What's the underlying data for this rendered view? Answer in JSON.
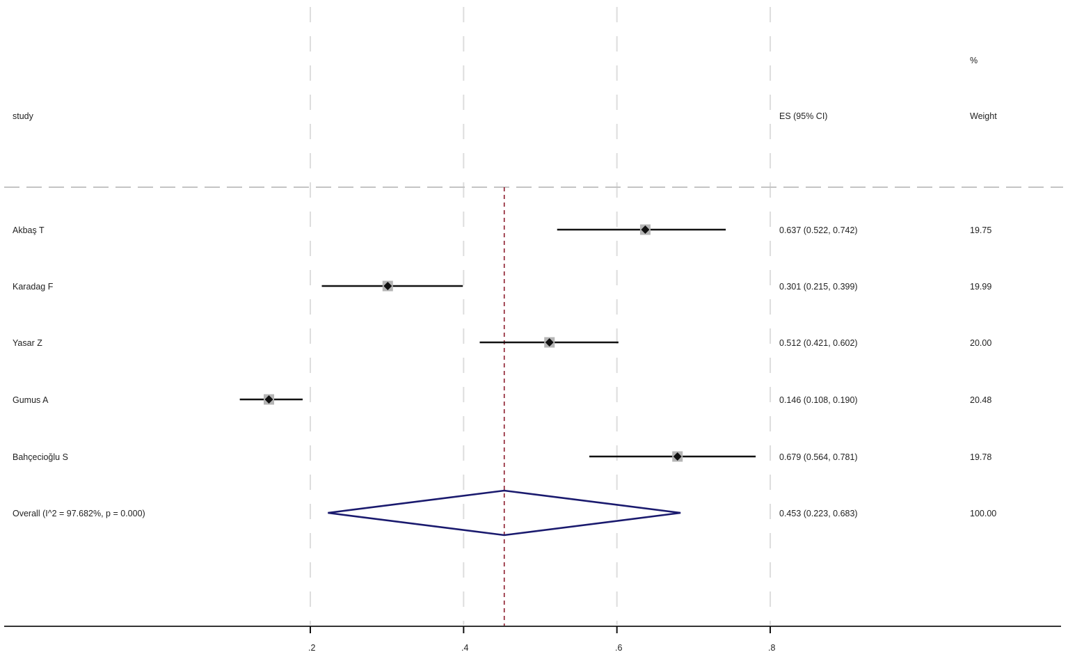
{
  "headers": {
    "study": "study",
    "es": "ES (95% CI)",
    "weight_line1": "%",
    "weight_line2": "Weight"
  },
  "rows": [
    {
      "study": "Akbaş T",
      "es_text": "0.637 (0.522, 0.742)",
      "weight": "19.75"
    },
    {
      "study": "Karadag F",
      "es_text": "0.301 (0.215, 0.399)",
      "weight": "19.99"
    },
    {
      "study": "Yasar Z",
      "es_text": "0.512 (0.421, 0.602)",
      "weight": "20.00"
    },
    {
      "study": "Gumus A",
      "es_text": "0.146 (0.108, 0.190)",
      "weight": "20.48"
    },
    {
      "study": "Bahçecioğlu S",
      "es_text": "0.679 (0.564, 0.781)",
      "weight": "19.78"
    }
  ],
  "overall": {
    "label": "Overall  (I^2 = 97.682%, p = 0.000)",
    "es_text": "0.453 (0.223, 0.683)",
    "weight": "100.00"
  },
  "axis": {
    "ticks": [
      ".2",
      ".4",
      ".6",
      ".8"
    ]
  },
  "colors": {
    "ci_line": "#111111",
    "point_marker": "#111111",
    "weight_box": "#b5b5b5",
    "overall_diamond": "#1a1a6e",
    "overall_ref_line": "#8b1a2b",
    "grid": "#dddddd",
    "axis": "#333333"
  },
  "chart_data": {
    "type": "forest",
    "title": "",
    "xlabel": "",
    "ylabel": "",
    "xlim": [
      0.2,
      0.8
    ],
    "x_ticks": [
      0.2,
      0.4,
      0.6,
      0.8
    ],
    "x_tick_labels": [
      ".2",
      ".4",
      ".6",
      ".8"
    ],
    "grid": "vertical dashed at ticks",
    "columns": [
      "study",
      "ES (95% CI)",
      "% Weight"
    ],
    "studies": [
      {
        "study": "Akbaş T",
        "es": 0.637,
        "ci_low": 0.522,
        "ci_high": 0.742,
        "weight": 19.75
      },
      {
        "study": "Karadag F",
        "es": 0.301,
        "ci_low": 0.215,
        "ci_high": 0.399,
        "weight": 19.99
      },
      {
        "study": "Yasar Z",
        "es": 0.512,
        "ci_low": 0.421,
        "ci_high": 0.602,
        "weight": 20.0
      },
      {
        "study": "Gumus A",
        "es": 0.146,
        "ci_low": 0.108,
        "ci_high": 0.19,
        "weight": 20.48
      },
      {
        "study": "Bahçecioğlu S",
        "es": 0.679,
        "ci_low": 0.564,
        "ci_high": 0.781,
        "weight": 19.78
      }
    ],
    "overall": {
      "es": 0.453,
      "ci_low": 0.223,
      "ci_high": 0.683,
      "weight": 100.0,
      "I2": "97.682%",
      "p": "0.000"
    },
    "reference_line": 0.453
  }
}
